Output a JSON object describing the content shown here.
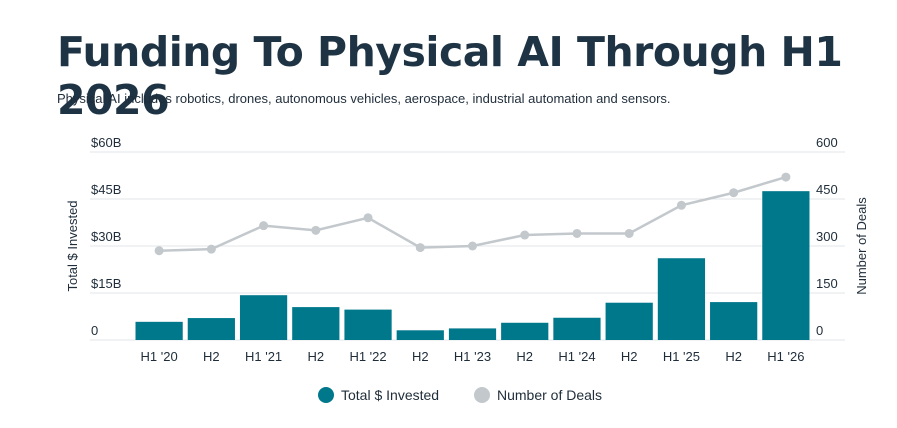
{
  "header": {
    "title": "Funding To Physical AI Through H1 2026",
    "subtitle": "Physical AI includes robotics, drones, autonomous vehicles, aerospace, industrial automation and sensors."
  },
  "colors": {
    "bar": "#00788c",
    "line": "#c3c8cd",
    "grid": "#e3e6e9",
    "text": "#1f2d3a"
  },
  "chart_data": {
    "type": "bar",
    "categories": [
      "H1 '20",
      "H2",
      "H1 '21",
      "H2",
      "H1 '22",
      "H2",
      "H1 '23",
      "H2",
      "H1 '24",
      "H2",
      "H1 '25",
      "H2",
      "H1 '26"
    ],
    "series": [
      {
        "name": "Total $ Invested",
        "type": "bar",
        "axis": "left",
        "values": [
          5.8,
          7.0,
          14.3,
          10.5,
          9.7,
          3.1,
          3.7,
          5.5,
          7.1,
          11.9,
          26.1,
          12.1,
          47.5
        ]
      },
      {
        "name": "Number of Deals",
        "type": "line",
        "axis": "right",
        "values": [
          285,
          290,
          365,
          350,
          390,
          295,
          300,
          335,
          340,
          340,
          430,
          470,
          520
        ]
      }
    ],
    "ylabel": "Total $ Invested",
    "y2label": "Number of Deals",
    "ylim": [
      0,
      60
    ],
    "y2lim": [
      0,
      600
    ],
    "yticks": [
      "0",
      "$15B",
      "$30B",
      "$45B",
      "$60B"
    ],
    "y2ticks": [
      "0",
      "150",
      "300",
      "450",
      "600"
    ],
    "grid": true,
    "legend": "bottom-center"
  }
}
